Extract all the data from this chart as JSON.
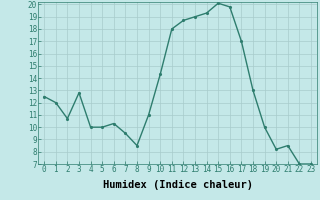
{
  "x": [
    0,
    1,
    2,
    3,
    4,
    5,
    6,
    7,
    8,
    9,
    10,
    11,
    12,
    13,
    14,
    15,
    16,
    17,
    18,
    19,
    20,
    21,
    22,
    23
  ],
  "y": [
    12.5,
    12.0,
    10.7,
    12.8,
    10.0,
    10.0,
    10.3,
    9.5,
    8.5,
    11.0,
    14.3,
    18.0,
    18.7,
    19.0,
    19.3,
    20.1,
    19.8,
    17.0,
    13.0,
    10.0,
    8.2,
    8.5,
    7.0,
    7.0
  ],
  "xlabel": "Humidex (Indice chaleur)",
  "ylim": [
    7,
    20
  ],
  "xlim": [
    -0.5,
    23.5
  ],
  "yticks": [
    7,
    8,
    9,
    10,
    11,
    12,
    13,
    14,
    15,
    16,
    17,
    18,
    19,
    20
  ],
  "xticks": [
    0,
    1,
    2,
    3,
    4,
    5,
    6,
    7,
    8,
    9,
    10,
    11,
    12,
    13,
    14,
    15,
    16,
    17,
    18,
    19,
    20,
    21,
    22,
    23
  ],
  "line_color": "#2e7d6e",
  "marker_color": "#2e7d6e",
  "bg_color": "#c4e8e8",
  "grid_color": "#a8cccc",
  "tick_fontsize": 5.5,
  "xlabel_fontsize": 7.5,
  "linewidth": 1.0,
  "markersize": 2.5
}
